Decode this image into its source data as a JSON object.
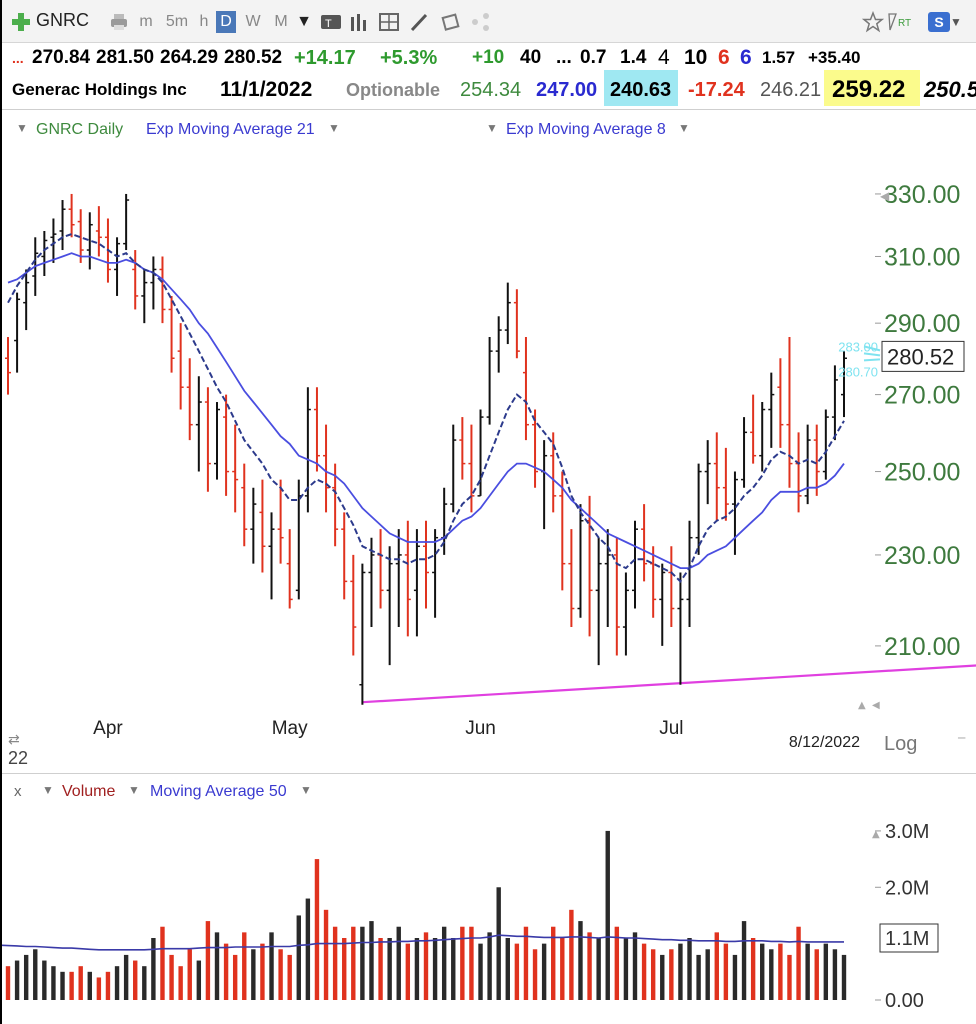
{
  "toolbar": {
    "symbol": "GNRC",
    "timeframes": [
      "m",
      "5m",
      "h",
      "D",
      "W",
      "M"
    ],
    "active_timeframe": "D",
    "icons": [
      "add-symbol-icon",
      "printer-icon",
      "bar-style-icon",
      "text-tool-icon",
      "indicator-icon",
      "chart-grid-icon",
      "pencil-icon",
      "eraser-icon",
      "share-icon",
      "favorite-star-icon",
      "realtime-icon",
      "settings-s-icon",
      "minimize-icon",
      "close-icon"
    ],
    "rt_label": "RT",
    "s_label": "S"
  },
  "quote_row1": {
    "lead": "...",
    "open": "270.84",
    "high": "281.50",
    "low": "264.29",
    "close": "280.52",
    "change": "+14.17",
    "change_pct": "+5.3%",
    "v1": "+10",
    "v2": "40",
    "v3": "...",
    "v4": "0.7",
    "v5": "1.4",
    "v6": "4",
    "v7": "10",
    "v8": "6",
    "v9": "6",
    "v10": "1.57",
    "v11": "+35.40"
  },
  "quote_row2": {
    "name": "Generac Holdings Inc",
    "date": "11/1/2022",
    "optionable": "Optionable",
    "v1": "254.34",
    "v2": "247.00",
    "v3": "240.63",
    "v4": "-17.24",
    "v5": "246.21",
    "v6": "259.22",
    "v7": "250.5"
  },
  "legend": {
    "symbol_daily": "GNRC Daily",
    "ema21": "Exp Moving Average 21",
    "ema8": "Exp Moving Average 8",
    "volume": "Volume",
    "ma50": "Moving Average 50",
    "x_label": "x"
  },
  "colors": {
    "up_bar": "#111111",
    "down_bar": "#e0321e",
    "ema21": "#4a4ee0",
    "ema8": "#2c3a8c",
    "trendline": "#e040e0",
    "axis_text": "#3e7a3e",
    "ema_label": "#7fe3f0",
    "volume_up": "#2a2a2a",
    "volume_down": "#e0321e",
    "volume_ma": "#3a3aa8"
  },
  "chart_data": [
    {
      "type": "ohlc",
      "title": "GNRC Daily",
      "x_ticks": [
        "Apr",
        "May",
        "Jun",
        "Jul"
      ],
      "y_ticks": [
        210,
        230,
        250,
        270,
        290,
        310,
        330
      ],
      "y_tick_labels": [
        "210.00",
        "230.00",
        "250.00",
        "270.00",
        "290.00",
        "310.00",
        "330.00"
      ],
      "y_scale": "log",
      "y_range": [
        195,
        338
      ],
      "date_label": "8/12/2022",
      "log_label": "Log",
      "year_label": "22",
      "last_price": "280.52",
      "ema_labels": [
        "283.00",
        "280.70"
      ],
      "bars": [
        [
          280,
          286,
          270,
          276
        ],
        [
          285,
          299,
          276,
          297
        ],
        [
          296,
          306,
          288,
          302
        ],
        [
          304,
          316,
          298,
          311
        ],
        [
          310,
          318,
          304,
          315
        ],
        [
          316,
          322,
          308,
          317
        ],
        [
          318,
          328,
          312,
          325
        ],
        [
          325,
          330,
          316,
          320
        ],
        [
          321,
          325,
          308,
          312
        ],
        [
          312,
          324,
          306,
          320
        ],
        [
          318,
          326,
          310,
          316
        ],
        [
          316,
          322,
          302,
          306
        ],
        [
          306,
          316,
          298,
          314
        ],
        [
          314,
          330,
          312,
          328
        ],
        [
          306,
          312,
          294,
          298
        ],
        [
          298,
          306,
          290,
          302
        ],
        [
          302,
          310,
          294,
          306
        ],
        [
          306,
          310,
          290,
          294
        ],
        [
          294,
          298,
          276,
          280
        ],
        [
          282,
          290,
          266,
          272
        ],
        [
          272,
          280,
          258,
          262
        ],
        [
          262,
          275,
          250,
          268
        ],
        [
          268,
          272,
          245,
          252
        ],
        [
          252,
          268,
          248,
          266
        ],
        [
          264,
          270,
          244,
          250
        ],
        [
          250,
          262,
          240,
          248
        ],
        [
          246,
          252,
          232,
          236
        ],
        [
          236,
          246,
          228,
          242
        ],
        [
          240,
          248,
          226,
          232
        ],
        [
          232,
          240,
          220,
          236
        ],
        [
          236,
          248,
          228,
          234
        ],
        [
          228,
          236,
          218,
          220
        ],
        [
          222,
          248,
          220,
          244
        ],
        [
          244,
          272,
          240,
          266
        ],
        [
          266,
          272,
          250,
          254
        ],
        [
          254,
          262,
          240,
          246
        ],
        [
          246,
          252,
          232,
          236
        ],
        [
          236,
          240,
          220,
          224
        ],
        [
          224,
          230,
          208,
          214
        ],
        [
          202,
          228,
          198,
          226
        ],
        [
          226,
          234,
          214,
          230
        ],
        [
          230,
          236,
          218,
          222
        ],
        [
          222,
          232,
          206,
          228
        ],
        [
          228,
          236,
          214,
          230
        ],
        [
          230,
          238,
          212,
          220
        ],
        [
          222,
          236,
          212,
          232
        ],
        [
          232,
          238,
          218,
          226
        ],
        [
          226,
          236,
          216,
          234
        ],
        [
          234,
          246,
          230,
          242
        ],
        [
          242,
          262,
          240,
          258
        ],
        [
          258,
          264,
          248,
          252
        ],
        [
          252,
          262,
          240,
          244
        ],
        [
          244,
          266,
          244,
          264
        ],
        [
          264,
          286,
          262,
          282
        ],
        [
          282,
          292,
          276,
          288
        ],
        [
          288,
          302,
          284,
          296
        ],
        [
          296,
          300,
          280,
          282
        ],
        [
          276,
          286,
          258,
          262
        ],
        [
          262,
          266,
          246,
          250
        ],
        [
          250,
          258,
          236,
          254
        ],
        [
          254,
          260,
          240,
          244
        ],
        [
          244,
          250,
          222,
          228
        ],
        [
          228,
          236,
          214,
          218
        ],
        [
          218,
          242,
          216,
          238
        ],
        [
          238,
          244,
          212,
          222
        ],
        [
          222,
          234,
          206,
          228
        ],
        [
          228,
          236,
          214,
          230
        ],
        [
          230,
          234,
          208,
          214
        ],
        [
          214,
          226,
          208,
          222
        ],
        [
          222,
          238,
          218,
          236
        ],
        [
          236,
          242,
          224,
          228
        ],
        [
          228,
          232,
          216,
          220
        ],
        [
          220,
          228,
          210,
          226
        ],
        [
          226,
          232,
          214,
          218
        ],
        [
          218,
          226,
          202,
          220
        ],
        [
          220,
          238,
          214,
          234
        ],
        [
          234,
          252,
          230,
          250
        ],
        [
          250,
          258,
          242,
          252
        ],
        [
          252,
          260,
          238,
          246
        ],
        [
          246,
          256,
          238,
          242
        ],
        [
          242,
          250,
          230,
          248
        ],
        [
          248,
          264,
          246,
          260
        ],
        [
          260,
          270,
          252,
          254
        ],
        [
          254,
          268,
          250,
          266
        ],
        [
          266,
          276,
          256,
          270
        ],
        [
          272,
          280,
          256,
          262
        ],
        [
          262,
          286,
          246,
          252
        ],
        [
          252,
          260,
          240,
          244
        ],
        [
          244,
          262,
          242,
          258
        ],
        [
          258,
          262,
          244,
          250
        ],
        [
          250,
          266,
          248,
          264
        ],
        [
          264,
          278,
          258,
          274
        ],
        [
          270,
          282,
          264,
          280
        ]
      ],
      "ema8": [
        296,
        301,
        305,
        309,
        312,
        314,
        316,
        317,
        316,
        315,
        314,
        312,
        310,
        311,
        308,
        306,
        305,
        302,
        297,
        292,
        287,
        282,
        277,
        272,
        268,
        263,
        258,
        255,
        252,
        248,
        246,
        243,
        243,
        246,
        248,
        247,
        245,
        241,
        237,
        232,
        231,
        230,
        229,
        229,
        228,
        229,
        229,
        230,
        233,
        238,
        242,
        244,
        248,
        254,
        260,
        266,
        270,
        268,
        263,
        260,
        257,
        251,
        244,
        240,
        237,
        234,
        232,
        228,
        227,
        229,
        229,
        228,
        227,
        226,
        224,
        227,
        232,
        236,
        238,
        239,
        241,
        244,
        246,
        249,
        253,
        255,
        254,
        252,
        253,
        252,
        255,
        259,
        263
      ],
      "ema21": [
        302,
        303,
        305,
        307,
        308,
        309,
        310,
        311,
        310,
        310,
        309,
        308,
        308,
        309,
        308,
        306,
        305,
        303,
        300,
        297,
        294,
        290,
        287,
        283,
        279,
        275,
        271,
        268,
        265,
        262,
        259,
        257,
        254,
        253,
        252,
        250,
        249,
        247,
        244,
        241,
        239,
        237,
        235,
        234,
        233,
        233,
        233,
        233,
        234,
        236,
        238,
        239,
        241,
        244,
        247,
        250,
        252,
        252,
        251,
        250,
        248,
        246,
        243,
        241,
        239,
        237,
        235,
        234,
        233,
        232,
        231,
        230,
        229,
        228,
        227,
        227,
        228,
        230,
        231,
        232,
        234,
        236,
        238,
        240,
        243,
        245,
        245,
        245,
        246,
        246,
        247,
        249,
        252
      ],
      "trendline": [
        [
          39,
          198.5
        ],
        [
          147,
          210.5
        ]
      ]
    },
    {
      "type": "bar",
      "title": "Volume",
      "y_tick_labels": [
        "3.0M",
        "2.0M",
        "1.1M",
        "0.00"
      ],
      "y_ticks": [
        3.0,
        2.0,
        1.1,
        0.0
      ],
      "y_range": [
        0,
        3.3
      ],
      "unit": "M",
      "values": [
        0.6,
        0.7,
        0.8,
        0.9,
        0.7,
        0.6,
        0.5,
        0.5,
        0.6,
        0.5,
        0.4,
        0.5,
        0.6,
        0.8,
        0.7,
        0.6,
        1.1,
        1.3,
        0.8,
        0.6,
        0.9,
        0.7,
        1.4,
        1.2,
        1.0,
        0.8,
        1.2,
        0.9,
        1.0,
        1.2,
        0.9,
        0.8,
        1.5,
        1.8,
        2.5,
        1.6,
        1.3,
        1.1,
        1.3,
        1.3,
        1.4,
        1.1,
        1.1,
        1.3,
        1.0,
        1.1,
        1.2,
        1.1,
        1.3,
        1.1,
        1.3,
        1.3,
        1.0,
        1.2,
        2.0,
        1.1,
        1.0,
        1.3,
        0.9,
        1.0,
        1.3,
        1.1,
        1.6,
        1.4,
        1.2,
        1.1,
        3.0,
        1.3,
        1.1,
        1.2,
        1.0,
        0.9,
        0.8,
        0.9,
        1.0,
        1.1,
        0.8,
        0.9,
        1.2,
        1.0,
        0.8,
        1.4,
        1.1,
        1.0,
        0.9,
        1.0,
        0.8,
        1.3,
        1.0,
        0.9,
        1.0,
        0.9,
        0.8
      ],
      "ma50": [
        0.97,
        0.96,
        0.95,
        0.95,
        0.94,
        0.93,
        0.92,
        0.92,
        0.91,
        0.9,
        0.89,
        0.89,
        0.89,
        0.89,
        0.89,
        0.89,
        0.9,
        0.91,
        0.91,
        0.91,
        0.91,
        0.92,
        0.93,
        0.93,
        0.93,
        0.94,
        0.94,
        0.94,
        0.94,
        0.95,
        0.95,
        0.95,
        0.97,
        0.98,
        1.0,
        1.0,
        1.0,
        1.0,
        1.01,
        1.02,
        1.02,
        1.03,
        1.03,
        1.04,
        1.04,
        1.05,
        1.05,
        1.06,
        1.07,
        1.08,
        1.09,
        1.1,
        1.1,
        1.12,
        1.15,
        1.14,
        1.13,
        1.13,
        1.12,
        1.11,
        1.11,
        1.11,
        1.12,
        1.12,
        1.11,
        1.1,
        1.12,
        1.11,
        1.1,
        1.1,
        1.09,
        1.08,
        1.07,
        1.07,
        1.06,
        1.06,
        1.05,
        1.05,
        1.05,
        1.04,
        1.04,
        1.05,
        1.05,
        1.05,
        1.04,
        1.04,
        1.03,
        1.04,
        1.03,
        1.03,
        1.03,
        1.03,
        1.03
      ]
    }
  ]
}
